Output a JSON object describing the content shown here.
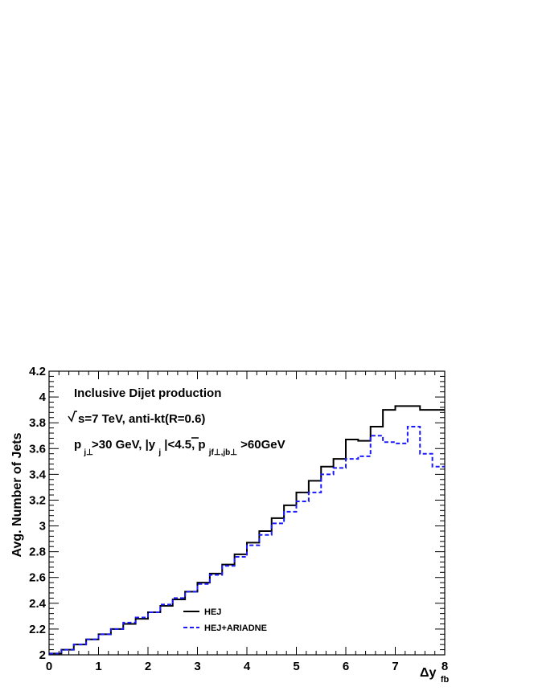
{
  "chart_data": {
    "type": "line",
    "plot_style": "step histogram",
    "ylabel": "Avg. Number of Jets",
    "xlabel": "Δy_fb",
    "xlabel_main": "Δy",
    "xlabel_sub": "fb",
    "xlim": [
      0,
      8
    ],
    "ylim": [
      2,
      4.2
    ],
    "xticks": [
      0,
      1,
      2,
      3,
      4,
      5,
      6,
      7,
      8
    ],
    "yticks": [
      2,
      2.2,
      2.4,
      2.6,
      2.8,
      3,
      3.2,
      3.4,
      3.6,
      3.8,
      4,
      4.2
    ],
    "xtick_labels": [
      "0",
      "1",
      "2",
      "3",
      "4",
      "5",
      "6",
      "7",
      "8"
    ],
    "ytick_labels": [
      "2",
      "2.2",
      "2.4",
      "2.6",
      "2.8",
      "3",
      "3.2",
      "3.4",
      "3.6",
      "3.8",
      "4",
      "4.2"
    ],
    "grid": false,
    "legend_position": "bottom-center",
    "bin_edges": [
      0,
      0.25,
      0.5,
      0.75,
      1,
      1.25,
      1.5,
      1.75,
      2,
      2.25,
      2.5,
      2.75,
      3,
      3.25,
      3.5,
      3.75,
      4,
      4.25,
      4.5,
      4.75,
      5,
      5.25,
      5.5,
      5.75,
      6,
      6.25,
      6.5,
      6.75,
      7,
      7.25,
      7.5,
      7.75,
      8
    ],
    "series": [
      {
        "name": "HEJ",
        "color": "#000000",
        "dash": "solid",
        "values": [
          2.01,
          2.04,
          2.08,
          2.12,
          2.16,
          2.2,
          2.24,
          2.28,
          2.33,
          2.38,
          2.43,
          2.49,
          2.56,
          2.63,
          2.7,
          2.78,
          2.87,
          2.96,
          3.06,
          3.16,
          3.26,
          3.35,
          3.46,
          3.52,
          3.67,
          3.66,
          3.77,
          3.9,
          3.93,
          3.93,
          3.9,
          3.9
        ]
      },
      {
        "name": "HEJ+ARIADNE",
        "color": "#1a1aff",
        "dash": "dashed",
        "values": [
          2.01,
          2.04,
          2.08,
          2.12,
          2.16,
          2.2,
          2.25,
          2.29,
          2.33,
          2.39,
          2.44,
          2.49,
          2.55,
          2.62,
          2.69,
          2.76,
          2.85,
          2.93,
          3.02,
          3.11,
          3.19,
          3.26,
          3.4,
          3.45,
          3.52,
          3.54,
          3.7,
          3.65,
          3.64,
          3.77,
          3.56,
          3.46
        ]
      }
    ],
    "annotations": {
      "line1": "Inclusive Dijet production",
      "line2": "s=7 TeV, anti-kt(R=0.6)",
      "line3_parts": [
        "p",
        "j⊥",
        ">30 GeV, |y",
        "j",
        "|<4.5, ",
        "p",
        "jf⊥,jb⊥",
        ">60GeV"
      ]
    }
  }
}
